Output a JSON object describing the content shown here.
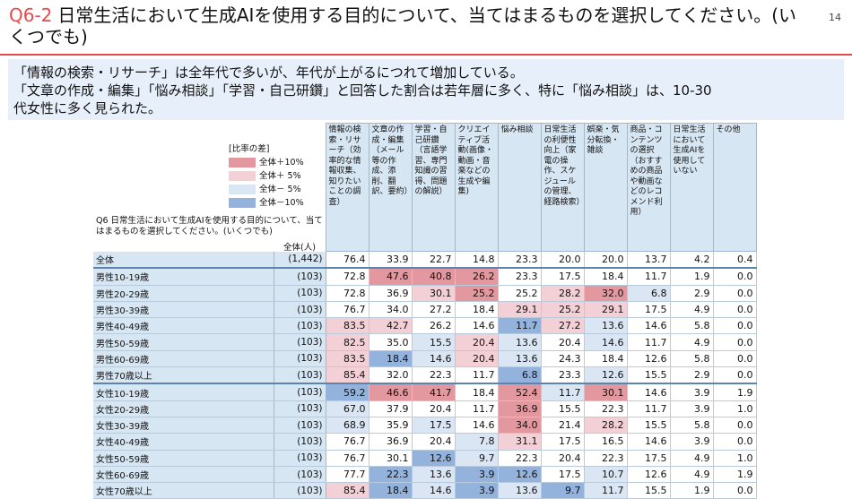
{
  "header": {
    "question_number": "Q6-2",
    "title": "日常生活において生成AIを使用する目的について、当てはまるものを選択してください。(いくつでも)",
    "page_number": "14"
  },
  "summary": {
    "lines": [
      "「情報の検索・リサーチ」は全年代で多いが、年代が上がるにつれて増加している。",
      "「文章の作成・編集」「悩み相談」「学習・自己研鑽」と回答した割合は若年層に多く、特に「悩み相談」は、10-30",
      "代女性に多く見られた。"
    ]
  },
  "legend": {
    "title": "[比率の差]",
    "items": [
      {
        "label": "全体＋10%",
        "color": "#e3979e"
      },
      {
        "label": "全体＋ 5%",
        "color": "#f2d0d5"
      },
      {
        "label": "全体－ 5%",
        "color": "#dae6f4"
      },
      {
        "label": "全体－10%",
        "color": "#93b2dc"
      }
    ]
  },
  "question_text": "Q6 日常生活において生成AIを使用する目的について、当てはまるものを選択してください。(いくつでも)",
  "base_label": "全体(人)",
  "columns": [
    "情報の検索・リサーチ（効率的な情報収集、知りたいことの調査）",
    "文章の作成・編集（メール等の作成、添削、翻訳、要約）",
    "学習・自己研鑽（言語学習、専門知識の習得、問題の解説）",
    "クリエイティブ活動(画像・動画・音楽などの生成や編集)",
    "悩み相談",
    "日常生活の利便性向上（家電の操作、スケジュールの管理、経路検索）",
    "娯楽・気分転換・雑談",
    "商品・コンテンツの選択（おすすめの商品や動画などのレコメンド利用）",
    "日常生活において生成AIを使用していない",
    "その他"
  ],
  "colors": {
    "plus10": "#e3979e",
    "plus5": "#f2d0d5",
    "minus5": "#dae6f4",
    "minus10": "#93b2dc"
  },
  "rows": [
    {
      "label": "全体",
      "n": "(1,442)",
      "values": [
        "76.4",
        "33.9",
        "22.7",
        "14.8",
        "23.3",
        "20.0",
        "20.0",
        "13.7",
        "4.2",
        "0.4"
      ],
      "shade": [
        "",
        "",
        "",
        "",
        "",
        "",
        "",
        "",
        "",
        ""
      ]
    },
    {
      "label": "男性10-19歳",
      "n": "(103)",
      "values": [
        "72.8",
        "47.6",
        "40.8",
        "26.2",
        "23.3",
        "17.5",
        "18.4",
        "11.7",
        "1.9",
        "0.0"
      ],
      "shade": [
        "",
        "p10",
        "p10",
        "p10",
        "",
        "",
        "",
        "",
        "",
        ""
      ]
    },
    {
      "label": "男性20-29歳",
      "n": "(103)",
      "values": [
        "72.8",
        "36.9",
        "30.1",
        "25.2",
        "25.2",
        "28.2",
        "32.0",
        "6.8",
        "2.9",
        "0.0"
      ],
      "shade": [
        "",
        "",
        "p5",
        "p10",
        "",
        "p5",
        "p10",
        "m5",
        "",
        ""
      ]
    },
    {
      "label": "男性30-39歳",
      "n": "(103)",
      "values": [
        "76.7",
        "34.0",
        "27.2",
        "18.4",
        "29.1",
        "25.2",
        "29.1",
        "17.5",
        "4.9",
        "0.0"
      ],
      "shade": [
        "",
        "",
        "",
        "",
        "p5",
        "p5",
        "p5",
        "",
        "",
        ""
      ]
    },
    {
      "label": "男性40-49歳",
      "n": "(103)",
      "values": [
        "83.5",
        "42.7",
        "26.2",
        "14.6",
        "11.7",
        "27.2",
        "13.6",
        "14.6",
        "5.8",
        "0.0"
      ],
      "shade": [
        "p5",
        "p5",
        "",
        "",
        "m10",
        "p5",
        "m5",
        "",
        "",
        ""
      ]
    },
    {
      "label": "男性50-59歳",
      "n": "(103)",
      "values": [
        "82.5",
        "35.0",
        "15.5",
        "20.4",
        "13.6",
        "20.4",
        "14.6",
        "11.7",
        "4.9",
        "0.0"
      ],
      "shade": [
        "p5",
        "",
        "m5",
        "p5",
        "m5",
        "",
        "m5",
        "",
        "",
        ""
      ]
    },
    {
      "label": "男性60-69歳",
      "n": "(103)",
      "values": [
        "83.5",
        "18.4",
        "14.6",
        "20.4",
        "13.6",
        "24.3",
        "18.4",
        "12.6",
        "5.8",
        "0.0"
      ],
      "shade": [
        "p5",
        "m10",
        "m5",
        "p5",
        "m5",
        "",
        "",
        "",
        "",
        ""
      ]
    },
    {
      "label": "男性70歳以上",
      "n": "(103)",
      "values": [
        "85.4",
        "32.0",
        "22.3",
        "11.7",
        "6.8",
        "23.3",
        "12.6",
        "15.5",
        "2.9",
        "0.0"
      ],
      "shade": [
        "p5",
        "",
        "",
        "",
        "m10",
        "",
        "m5",
        "",
        "",
        ""
      ]
    },
    {
      "label": "女性10-19歳",
      "n": "(103)",
      "values": [
        "59.2",
        "46.6",
        "41.7",
        "18.4",
        "52.4",
        "11.7",
        "30.1",
        "14.6",
        "3.9",
        "1.9"
      ],
      "shade": [
        "m10",
        "p10",
        "p10",
        "",
        "p10",
        "m5",
        "p10",
        "",
        "",
        ""
      ]
    },
    {
      "label": "女性20-29歳",
      "n": "(103)",
      "values": [
        "67.0",
        "37.9",
        "20.4",
        "11.7",
        "36.9",
        "15.5",
        "22.3",
        "11.7",
        "3.9",
        "1.0"
      ],
      "shade": [
        "m5",
        "",
        "",
        "",
        "p10",
        "",
        "",
        "",
        "",
        ""
      ]
    },
    {
      "label": "女性30-39歳",
      "n": "(103)",
      "values": [
        "68.9",
        "35.9",
        "17.5",
        "14.6",
        "34.0",
        "21.4",
        "28.2",
        "15.5",
        "5.8",
        "0.0"
      ],
      "shade": [
        "m5",
        "",
        "m5",
        "",
        "p10",
        "",
        "p5",
        "",
        "",
        ""
      ]
    },
    {
      "label": "女性40-49歳",
      "n": "(103)",
      "values": [
        "76.7",
        "36.9",
        "20.4",
        "7.8",
        "31.1",
        "17.5",
        "16.5",
        "14.6",
        "3.9",
        "0.0"
      ],
      "shade": [
        "",
        "",
        "",
        "m5",
        "p5",
        "",
        "",
        "",
        "",
        ""
      ]
    },
    {
      "label": "女性50-59歳",
      "n": "(103)",
      "values": [
        "76.7",
        "30.1",
        "12.6",
        "9.7",
        "22.3",
        "20.4",
        "22.3",
        "17.5",
        "4.9",
        "1.0"
      ],
      "shade": [
        "",
        "",
        "m10",
        "m5",
        "",
        "",
        "",
        "",
        "",
        ""
      ]
    },
    {
      "label": "女性60-69歳",
      "n": "(103)",
      "values": [
        "77.7",
        "22.3",
        "13.6",
        "3.9",
        "12.6",
        "17.5",
        "10.7",
        "12.6",
        "4.9",
        "1.9"
      ],
      "shade": [
        "",
        "m10",
        "m5",
        "m10",
        "m10",
        "",
        "m5",
        "",
        "",
        ""
      ]
    },
    {
      "label": "女性70歳以上",
      "n": "(103)",
      "values": [
        "85.4",
        "18.4",
        "14.6",
        "3.9",
        "13.6",
        "9.7",
        "11.7",
        "15.5",
        "1.9",
        "0.0"
      ],
      "shade": [
        "p5",
        "m10",
        "m5",
        "m10",
        "m5",
        "m10",
        "m5",
        "",
        "",
        ""
      ]
    }
  ]
}
